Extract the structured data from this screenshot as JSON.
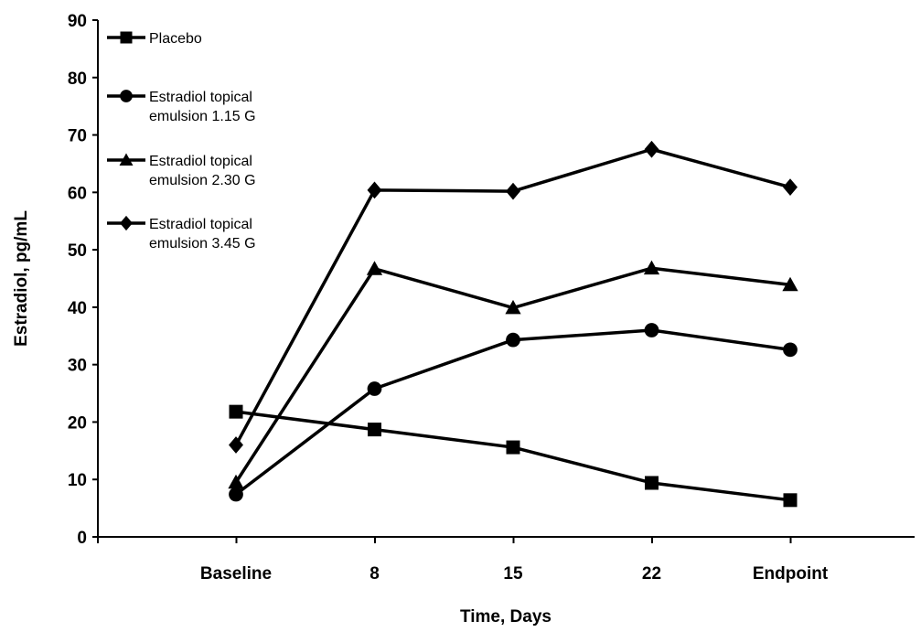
{
  "chart_data": {
    "type": "line",
    "title": "",
    "xlabel": "Time, Days",
    "ylabel": "Estradiol, pg/mL",
    "categories": [
      "Baseline",
      "8",
      "15",
      "22",
      "Endpoint"
    ],
    "ylim": [
      0,
      90
    ],
    "yticks": [
      0,
      10,
      20,
      30,
      40,
      50,
      60,
      70,
      80,
      90
    ],
    "grid": false,
    "legend_position": "top-left",
    "series": [
      {
        "name": "Placebo",
        "legend_lines": [
          "Placebo"
        ],
        "marker": "square",
        "color": "#000000",
        "values": [
          21.8,
          18.7,
          15.6,
          9.4,
          6.4
        ]
      },
      {
        "name": "Estradiol topical emulsion 1.15 G",
        "legend_lines": [
          "Estradiol topical",
          "emulsion 1.15 G"
        ],
        "marker": "circle",
        "color": "#000000",
        "values": [
          7.4,
          25.8,
          34.3,
          36.0,
          32.6
        ]
      },
      {
        "name": "Estradiol topical emulsion 2.30 G",
        "legend_lines": [
          "Estradiol topical",
          "emulsion 2.30 G"
        ],
        "marker": "triangle",
        "color": "#000000",
        "values": [
          9.5,
          46.7,
          39.9,
          46.8,
          43.9
        ]
      },
      {
        "name": "Estradiol topical emulsion 3.45 G",
        "legend_lines": [
          "Estradiol topical",
          "emulsion 3.45 G"
        ],
        "marker": "diamond",
        "color": "#000000",
        "values": [
          16.0,
          60.4,
          60.2,
          67.5,
          60.9
        ]
      }
    ]
  }
}
